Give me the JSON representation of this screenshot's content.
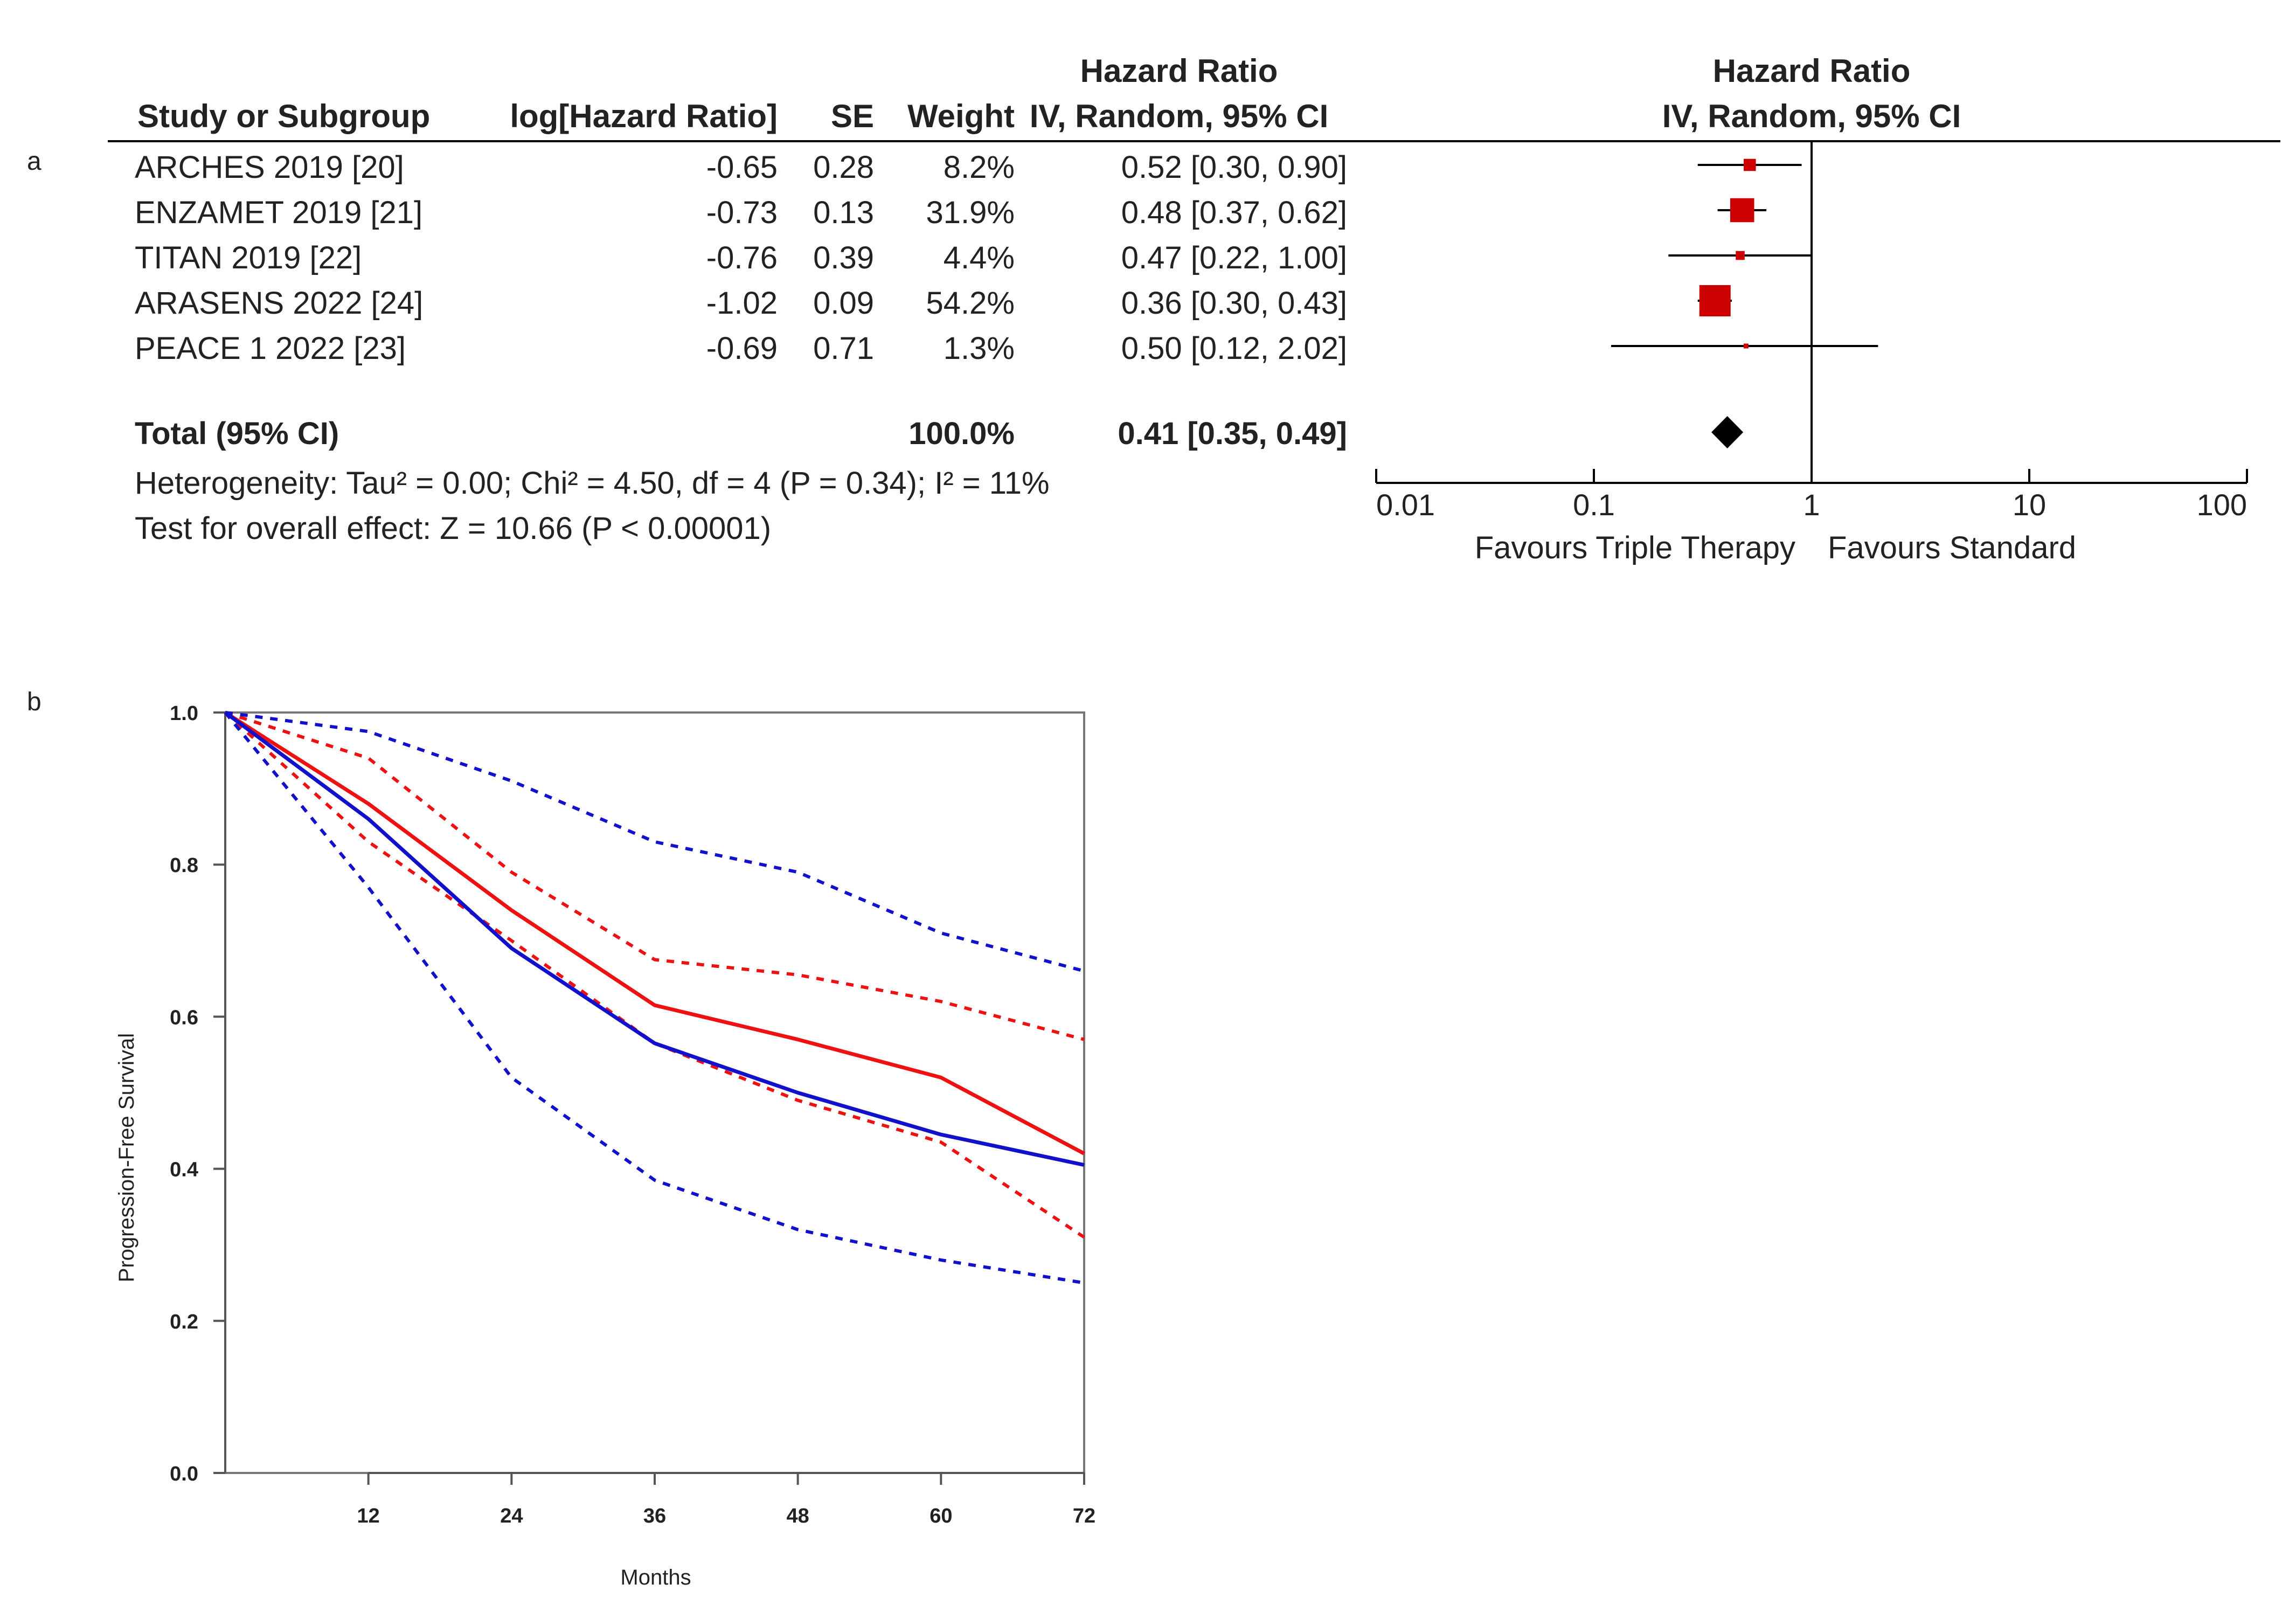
{
  "panels": {
    "a": "a",
    "b": "b"
  },
  "forest": {
    "headers": {
      "study": "Study or Subgroup",
      "loghr": "log[Hazard Ratio]",
      "se": "SE",
      "weight": "Weight",
      "hr_top": "Hazard Ratio",
      "hr_bottom": "IV, Random, 95% CI",
      "plot_top": "Hazard Ratio",
      "plot_bottom": "IV, Random, 95% CI"
    },
    "studies": [
      {
        "name": "ARCHES 2019 [20]",
        "loghr": "-0.65",
        "se": "0.28",
        "weight": "8.2%",
        "ci_text": "0.52 [0.30, 0.90]",
        "hr": 0.52,
        "lo": 0.3,
        "hi": 0.9,
        "w": 8.2
      },
      {
        "name": "ENZAMET 2019 [21]",
        "loghr": "-0.73",
        "se": "0.13",
        "weight": "31.9%",
        "ci_text": "0.48 [0.37, 0.62]",
        "hr": 0.48,
        "lo": 0.37,
        "hi": 0.62,
        "w": 31.9
      },
      {
        "name": "TITAN 2019 [22]",
        "loghr": "-0.76",
        "se": "0.39",
        "weight": "4.4%",
        "ci_text": "0.47 [0.22, 1.00]",
        "hr": 0.47,
        "lo": 0.22,
        "hi": 1.0,
        "w": 4.4
      },
      {
        "name": "ARASENS 2022 [24]",
        "loghr": "-1.02",
        "se": "0.09",
        "weight": "54.2%",
        "ci_text": "0.36 [0.30, 0.43]",
        "hr": 0.36,
        "lo": 0.3,
        "hi": 0.43,
        "w": 54.2
      },
      {
        "name": "PEACE 1  2022 [23]",
        "loghr": "-0.69",
        "se": "0.71",
        "weight": "1.3%",
        "ci_text": "0.50 [0.12, 2.02]",
        "hr": 0.5,
        "lo": 0.12,
        "hi": 2.02,
        "w": 1.3
      }
    ],
    "total": {
      "label": "Total (95% CI)",
      "weight": "100.0%",
      "ci_text": "0.41 [0.35, 0.49]",
      "hr": 0.41,
      "lo": 0.35,
      "hi": 0.49
    },
    "heterogeneity": "Heterogeneity: Tau² = 0.00; Chi² = 4.50, df = 4 (P = 0.34); I² = 11%",
    "overall_effect": "Test for overall effect: Z = 10.66 (P < 0.00001)",
    "axis_ticks": [
      {
        "value": 0.01,
        "label": "0.01"
      },
      {
        "value": 0.1,
        "label": "0.1"
      },
      {
        "value": 1,
        "label": "1"
      },
      {
        "value": 10,
        "label": "10"
      },
      {
        "value": 100,
        "label": "100"
      }
    ],
    "favours_left": "Favours Triple Therapy",
    "favours_right": "Favours Standard",
    "colors": {
      "marker": "#cc0000",
      "line": "#000000"
    }
  },
  "chart_data": {
    "type": "line",
    "title": "",
    "xlabel": "Months",
    "ylabel": "Progression-Free Survival",
    "xlim": [
      0,
      72
    ],
    "ylim": [
      0,
      1
    ],
    "x_ticks": [
      12,
      24,
      36,
      48,
      60,
      72
    ],
    "y_ticks": [
      "0.0",
      "0.2",
      "0.4",
      "0.6",
      "0.8",
      "1.0"
    ],
    "grid": false,
    "x": [
      0,
      12,
      24,
      36,
      48,
      60,
      72
    ],
    "series": [
      {
        "color": "#ee1111",
        "style": "solid",
        "values": [
          1.0,
          0.88,
          0.74,
          0.615,
          0.57,
          0.52,
          0.42
        ]
      },
      {
        "color": "#ee1111",
        "style": "dotted",
        "values": [
          1.0,
          0.94,
          0.79,
          0.675,
          0.655,
          0.62,
          0.57
        ]
      },
      {
        "color": "#ee1111",
        "style": "dotted",
        "values": [
          1.0,
          0.83,
          0.7,
          0.565,
          0.49,
          0.435,
          0.31
        ]
      },
      {
        "color": "#1111cc",
        "style": "solid",
        "values": [
          1.0,
          0.86,
          0.69,
          0.565,
          0.5,
          0.445,
          0.405
        ]
      },
      {
        "color": "#1111cc",
        "style": "dotted",
        "values": [
          1.0,
          0.975,
          0.91,
          0.83,
          0.79,
          0.71,
          0.66
        ]
      },
      {
        "color": "#1111cc",
        "style": "dotted",
        "values": [
          1.0,
          0.77,
          0.52,
          0.385,
          0.32,
          0.28,
          0.25
        ]
      }
    ]
  }
}
